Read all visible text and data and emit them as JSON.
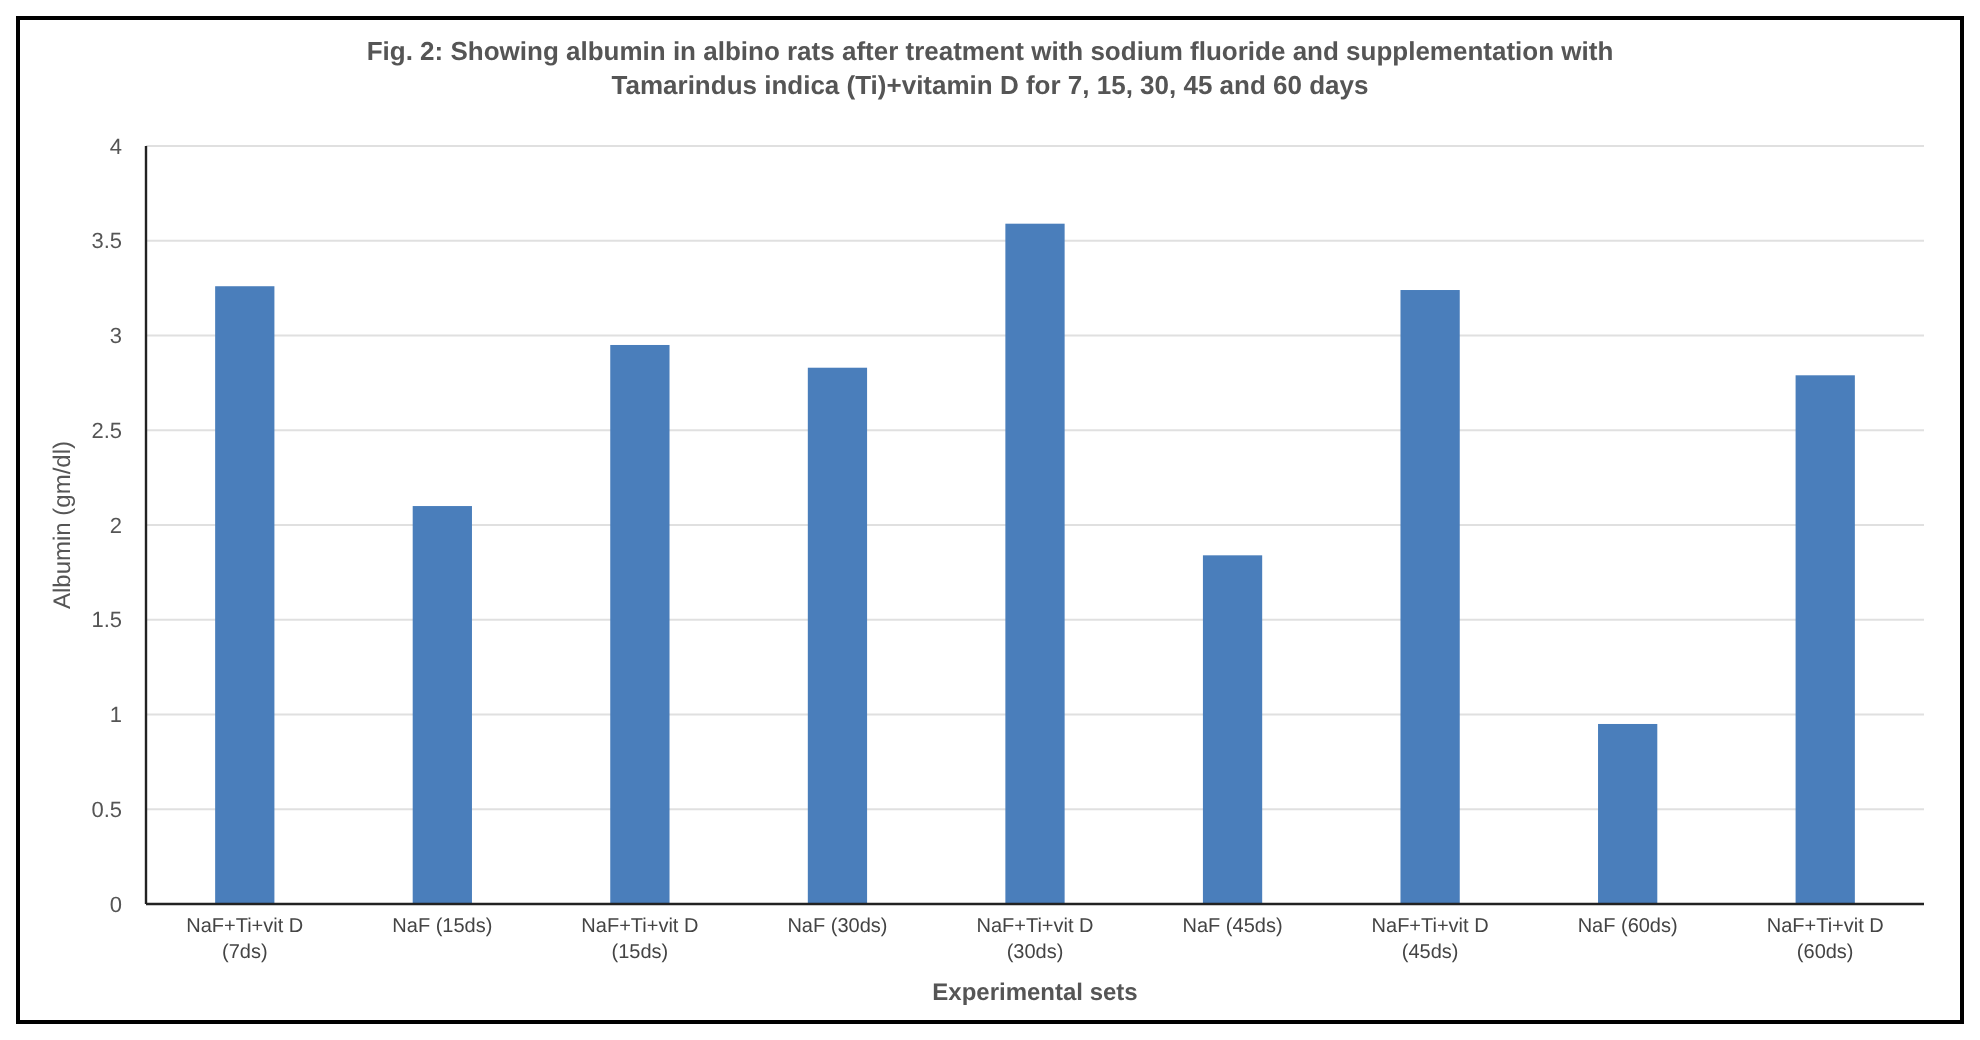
{
  "chart_data": {
    "type": "bar",
    "title": "Fig. 2: Showing albumin in albino rats after treatment with sodium fluoride and supplementation with Tamarindus indica (Ti)+vitamin D for 7, 15, 30, 45 and 60 days",
    "xlabel": "Experimental sets",
    "ylabel": "Albumin (gm/dl)",
    "categories": [
      "NaF+Ti+vit D (7ds)",
      "NaF (15ds)",
      "NaF+Ti+vit D (15ds)",
      "NaF (30ds)",
      "NaF+Ti+vit D (30ds)",
      "NaF (45ds)",
      "NaF+Ti+vit D (45ds)",
      "NaF (60ds)",
      "NaF+Ti+vit D (60ds)"
    ],
    "values": [
      3.26,
      2.1,
      2.95,
      2.83,
      3.59,
      1.84,
      3.24,
      0.95,
      2.79
    ],
    "color": "#4a7ebb",
    "ylim": [
      0,
      4
    ],
    "yticks": [
      0,
      0.5,
      1,
      1.5,
      2,
      2.5,
      3,
      3.5,
      4
    ],
    "grid": "y"
  }
}
